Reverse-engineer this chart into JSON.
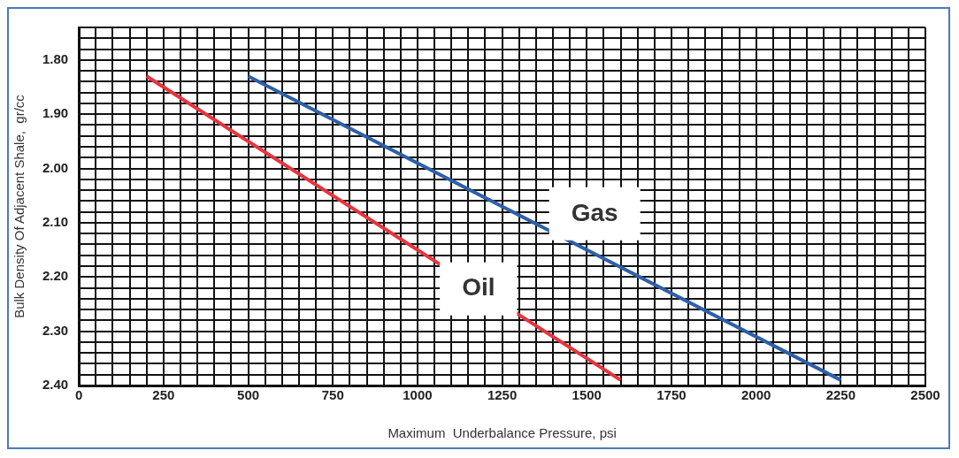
{
  "chart_data": {
    "type": "line",
    "xlabel": "Maximum  Underbalance Pressure, psi",
    "ylabel": "Bulk Density Of Adjacent Shale,  gr/cc",
    "xlim": [
      0,
      2500
    ],
    "ylim": [
      2.4,
      1.74
    ],
    "xticks": [
      0,
      {
        "value": 50,
        "label": null
      },
      {
        "value": 100,
        "label": null
      },
      {
        "value": 150,
        "label": null
      },
      {
        "value": 200,
        "label": null
      },
      250,
      {
        "value": 300,
        "label": null
      },
      {
        "value": 350,
        "label": null
      },
      {
        "value": 400,
        "label": null
      },
      {
        "value": 450,
        "label": null
      },
      500,
      {
        "value": 550,
        "label": null
      },
      {
        "value": 600,
        "label": null
      },
      {
        "value": 650,
        "label": null
      },
      {
        "value": 700,
        "label": null
      },
      750,
      {
        "value": 800,
        "label": null
      },
      {
        "value": 850,
        "label": null
      },
      {
        "value": 900,
        "label": null
      },
      {
        "value": 950,
        "label": null
      },
      1000,
      {
        "value": 1050,
        "label": null
      },
      {
        "value": 1100,
        "label": null
      },
      {
        "value": 1150,
        "label": null
      },
      {
        "value": 1200,
        "label": null
      },
      1250,
      {
        "value": 1300,
        "label": null
      },
      {
        "value": 1350,
        "label": null
      },
      {
        "value": 1400,
        "label": null
      },
      {
        "value": 1450,
        "label": null
      },
      1500,
      {
        "value": 1550,
        "label": null
      },
      {
        "value": 1600,
        "label": null
      },
      {
        "value": 1650,
        "label": null
      },
      {
        "value": 1700,
        "label": null
      },
      1750,
      {
        "value": 1800,
        "label": null
      },
      {
        "value": 1850,
        "label": null
      },
      {
        "value": 1900,
        "label": null
      },
      {
        "value": 1950,
        "label": null
      },
      2000,
      {
        "value": 2050,
        "label": null
      },
      {
        "value": 2100,
        "label": null
      },
      {
        "value": 2150,
        "label": null
      },
      {
        "value": 2200,
        "label": null
      },
      2250,
      {
        "value": 2300,
        "label": null
      },
      {
        "value": 2350,
        "label": null
      },
      {
        "value": 2400,
        "label": null
      },
      {
        "value": 2450,
        "label": null
      },
      2500
    ],
    "yticks": [
      {
        "value": 1.74,
        "label": null
      },
      {
        "value": 1.76,
        "label": null
      },
      {
        "value": 1.78,
        "label": null
      },
      {
        "value": 1.8,
        "label": "1.80"
      },
      {
        "value": 1.82,
        "label": null
      },
      {
        "value": 1.84,
        "label": null
      },
      {
        "value": 1.86,
        "label": null
      },
      {
        "value": 1.88,
        "label": null
      },
      {
        "value": 1.9,
        "label": "1.90"
      },
      {
        "value": 1.92,
        "label": null
      },
      {
        "value": 1.94,
        "label": null
      },
      {
        "value": 1.96,
        "label": null
      },
      {
        "value": 1.98,
        "label": null
      },
      {
        "value": 2.0,
        "label": "2.00"
      },
      {
        "value": 2.02,
        "label": null
      },
      {
        "value": 2.04,
        "label": null
      },
      {
        "value": 2.06,
        "label": null
      },
      {
        "value": 2.08,
        "label": null
      },
      {
        "value": 2.1,
        "label": "2.10"
      },
      {
        "value": 2.12,
        "label": null
      },
      {
        "value": 2.14,
        "label": null
      },
      {
        "value": 2.16,
        "label": null
      },
      {
        "value": 2.18,
        "label": null
      },
      {
        "value": 2.2,
        "label": "2.20"
      },
      {
        "value": 2.22,
        "label": null
      },
      {
        "value": 2.24,
        "label": null
      },
      {
        "value": 2.26,
        "label": null
      },
      {
        "value": 2.28,
        "label": null
      },
      {
        "value": 2.3,
        "label": "2.30"
      },
      {
        "value": 2.32,
        "label": null
      },
      {
        "value": 2.34,
        "label": null
      },
      {
        "value": 2.36,
        "label": null
      },
      {
        "value": 2.38,
        "label": null
      },
      {
        "value": 2.4,
        "label": "2.40"
      }
    ],
    "grid": true,
    "legend": false,
    "marker": "none",
    "line_style": "solid",
    "series": [
      {
        "name": "Oil",
        "color": "#e8333f",
        "x": [
          200,
          1600
        ],
        "values": [
          1.83,
          2.39
        ]
      },
      {
        "name": "Gas",
        "color": "#2e5fa8",
        "x": [
          500,
          2250
        ],
        "values": [
          1.83,
          2.39
        ]
      }
    ]
  }
}
